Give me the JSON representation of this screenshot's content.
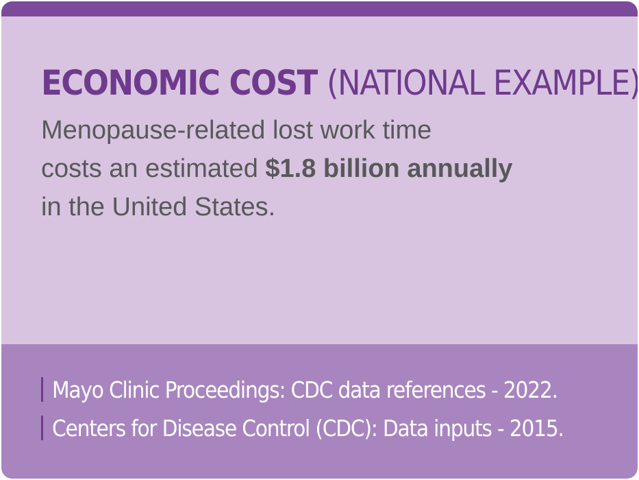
{
  "card": {
    "title_bold": "ECONOMIC COST",
    "title_light": "(NATIONAL EXAMPLE)",
    "body_line1": "Menopause-related lost work time",
    "body_line2_start": "costs an estimated ",
    "body_emphasis": "$1.8 billion annually",
    "body_line3": "in the United States."
  },
  "sources": [
    "Mayo Clinic Proceedings: CDC data references - 2022.",
    "Centers for Disease Control (CDC): Data inputs - 2015."
  ],
  "colors": {
    "accent": "#7c4a9a",
    "title": "#6f3a8e",
    "card_background": "#d8c4e0",
    "footer_background": "#a885bf",
    "body_text": "#58585a"
  }
}
